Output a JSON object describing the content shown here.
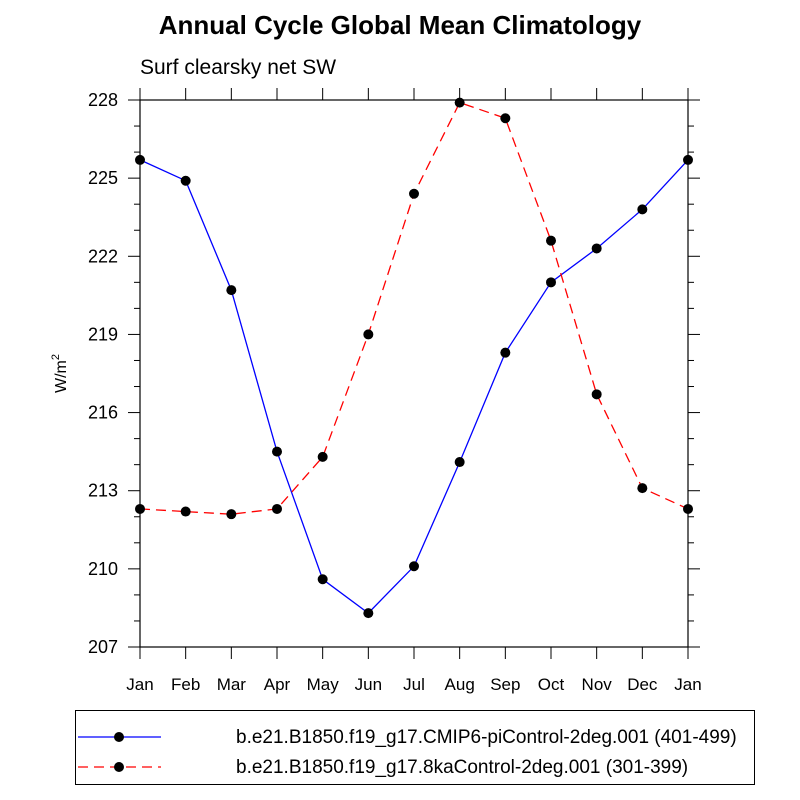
{
  "chart_data": {
    "type": "line",
    "title": "Annual Cycle Global Mean Climatology",
    "subtitle": "Surf clearsky net SW",
    "ylabel": "W/m",
    "ylabel_sup": "2",
    "categories": [
      "Jan",
      "Feb",
      "Mar",
      "Apr",
      "May",
      "Jun",
      "Jul",
      "Aug",
      "Sep",
      "Oct",
      "Nov",
      "Dec",
      "Jan"
    ],
    "ylim": [
      207,
      228
    ],
    "yticks": [
      207,
      210,
      213,
      216,
      219,
      222,
      225,
      228
    ],
    "series": [
      {
        "name": "b.e21.B1850.f19_g17.CMIP6-piControl-2deg.001 (401-499)",
        "color": "#0000ff",
        "dash": "solid",
        "values": [
          225.7,
          224.9,
          220.7,
          214.5,
          209.6,
          208.3,
          210.1,
          214.1,
          218.3,
          221.0,
          222.3,
          223.8,
          225.7
        ]
      },
      {
        "name": "b.e21.B1850.f19_g17.8kaControl-2deg.001 (301-399)",
        "color": "#ff0000",
        "dash": "dashed",
        "values": [
          212.3,
          212.2,
          212.1,
          212.3,
          214.3,
          219.0,
          224.4,
          227.9,
          227.3,
          222.6,
          216.7,
          213.1,
          212.3
        ]
      }
    ],
    "grid": false,
    "legend_position": "bottom"
  }
}
